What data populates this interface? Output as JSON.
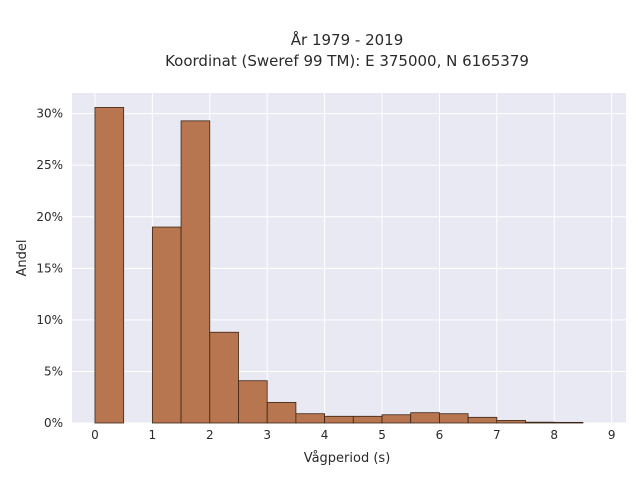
{
  "chart_data": {
    "type": "bar",
    "title": "År 1979 - 2019",
    "subtitle": "Koordinat (Sweref 99 TM): E 375000, N 6165379",
    "xlabel": "Vågperiod (s)",
    "ylabel": "Andel",
    "bin_width": 0.5,
    "bin_starts": [
      0,
      0.5,
      1,
      1.5,
      2,
      2.5,
      3,
      3.5,
      4,
      4.5,
      5,
      5.5,
      6,
      6.5,
      7,
      7.5,
      8,
      8.5
    ],
    "values": [
      30.6,
      0,
      19.0,
      29.3,
      8.8,
      4.1,
      2.0,
      0.9,
      0.65,
      0.65,
      0.8,
      1.0,
      0.9,
      0.55,
      0.25,
      0.08,
      0.06,
      0
    ],
    "xlim": [
      -0.4,
      9.25
    ],
    "ylim": [
      0,
      32
    ],
    "x_ticks": [
      "0",
      "1",
      "2",
      "3",
      "4",
      "5",
      "6",
      "7",
      "8",
      "9"
    ],
    "y_ticks": [
      "0%",
      "5%",
      "10%",
      "15%",
      "20%",
      "25%",
      "30%"
    ],
    "grid": true,
    "bar_color": "#b87650",
    "bar_edge_color": "#3a2414",
    "plot_background": "#e8e9f2"
  }
}
